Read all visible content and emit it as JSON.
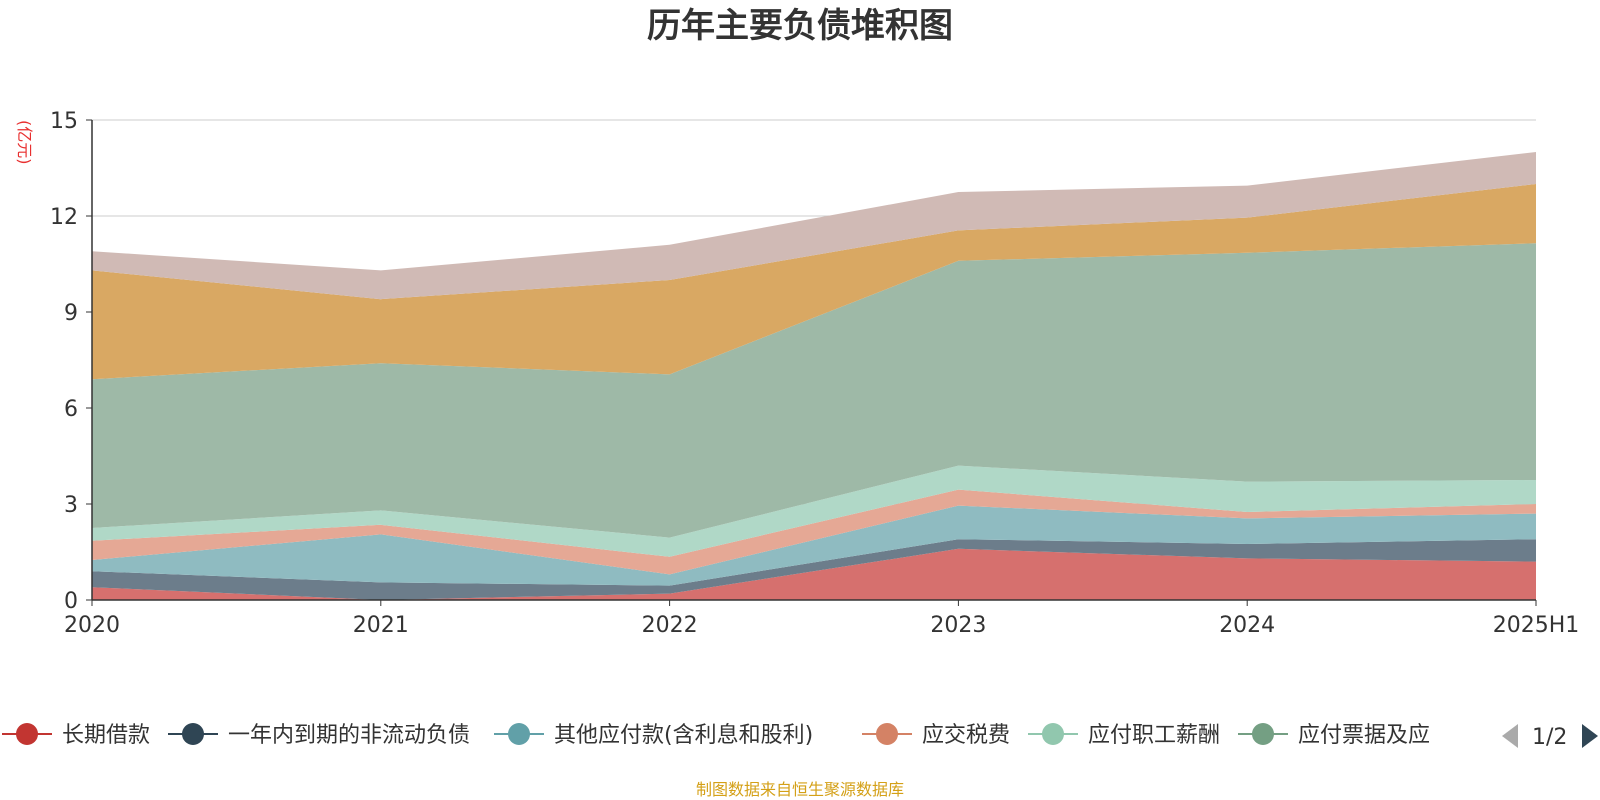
{
  "chart_data": {
    "type": "area",
    "stacked": true,
    "title": "历年主要负债堆积图",
    "unit": "(亿元)",
    "x": [
      "2020",
      "2021",
      "2022",
      "2023",
      "2024",
      "2025H1"
    ],
    "ylim": [
      0,
      15
    ],
    "yticks": [
      "0",
      "3",
      "6",
      "9",
      "12",
      "15"
    ],
    "grid": true,
    "series": [
      {
        "name": "长期借款",
        "color": "#d6706e",
        "legend_color": "#c23531",
        "values": [
          0.4,
          0.0,
          0.2,
          1.6,
          1.3,
          1.2
        ]
      },
      {
        "name": "一年内到期的非流动负债",
        "color": "#6c7d8b",
        "legend_color": "#2f4554",
        "values": [
          0.5,
          0.55,
          0.25,
          0.3,
          0.45,
          0.7
        ]
      },
      {
        "name": "其他应付款(含利息和股利)",
        "color": "#8fbbc1",
        "legend_color": "#61a0a8",
        "values": [
          0.35,
          1.5,
          0.35,
          1.05,
          0.8,
          0.8
        ]
      },
      {
        "name": "应交税费",
        "color": "#e5a895",
        "legend_color": "#d48265",
        "values": [
          0.6,
          0.3,
          0.55,
          0.5,
          0.2,
          0.3
        ]
      },
      {
        "name": "应付职工薪酬",
        "color": "#b0d8c7",
        "legend_color": "#91c7ae",
        "values": [
          0.4,
          0.45,
          0.6,
          0.75,
          0.95,
          0.75
        ]
      },
      {
        "name": "应付票据及应付账款",
        "color": "#9eb9a7",
        "legend_color": "#749f83",
        "values": [
          4.65,
          4.6,
          5.1,
          6.4,
          7.15,
          7.4
        ]
      },
      {
        "name": "",
        "color": "#d9a863",
        "legend_color": "#ca8622",
        "values": [
          3.4,
          2.0,
          2.95,
          0.95,
          1.1,
          1.85
        ]
      },
      {
        "name": "",
        "color": "#d0bab5",
        "legend_color": "#bda29a",
        "values": [
          0.6,
          0.9,
          1.1,
          1.2,
          1.0,
          1.0
        ]
      }
    ]
  },
  "legend": {
    "items": [
      {
        "label": "长期借款",
        "color": "#c23531"
      },
      {
        "label": "一年内到期的非流动负债",
        "color": "#2f4554"
      },
      {
        "label": "其他应付款(含利息和股利)",
        "color": "#61a0a8"
      },
      {
        "label": "应交税费",
        "color": "#d48265"
      },
      {
        "label": "应付职工薪酬",
        "color": "#91c7ae"
      },
      {
        "label": "应付票据及应",
        "color": "#749f83"
      }
    ],
    "page": "1/2",
    "prev_icon": "triangle-left-icon",
    "next_icon": "triangle-right-icon"
  },
  "footer": {
    "source": "制图数据来自恒生聚源数据库"
  }
}
